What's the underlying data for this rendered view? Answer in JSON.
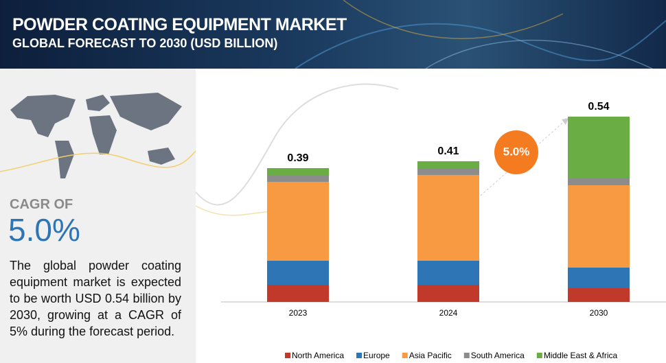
{
  "header": {
    "title": "POWDER COATING EQUIPMENT MARKET",
    "subtitle": "GLOBAL FORECAST TO 2030 (USD BILLION)"
  },
  "side_panel": {
    "cagr_label": "CAGR OF",
    "cagr_value": "5.0%",
    "description": "The global powder coating equipment market is expected to be worth USD 0.54 billion by 2030, growing at a CAGR of 5% during the forecast period."
  },
  "chart_data": {
    "type": "stacked_bar",
    "categories": [
      "2023",
      "2024",
      "2030"
    ],
    "series": [
      {
        "name": "North America",
        "color": "#c0392b",
        "values": [
          0.05,
          0.05,
          0.04
        ]
      },
      {
        "name": "Europe",
        "color": "#2e75b6",
        "values": [
          0.07,
          0.07,
          0.06
        ]
      },
      {
        "name": "Asia Pacific",
        "color": "#f79a42",
        "values": [
          0.23,
          0.25,
          0.24
        ]
      },
      {
        "name": "South America",
        "color": "#8c8c8c",
        "values": [
          0.02,
          0.02,
          0.02
        ]
      },
      {
        "name": "Middle East & Africa",
        "color": "#6aad45",
        "values": [
          0.02,
          0.02,
          0.18
        ]
      }
    ],
    "totals": [
      0.39,
      0.41,
      0.54
    ],
    "annotation": "5.0%",
    "ylim": [
      0,
      0.6
    ],
    "legend": "bottom"
  }
}
